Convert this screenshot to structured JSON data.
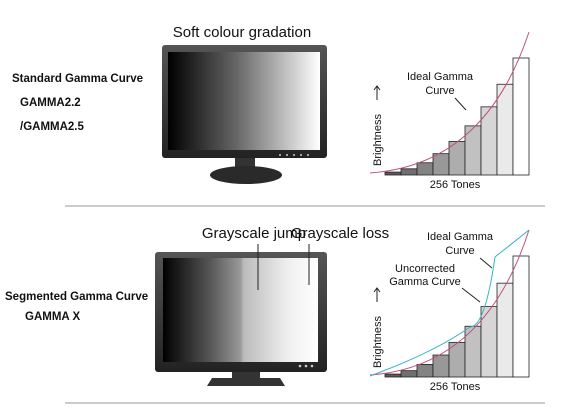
{
  "standard": {
    "heading": "Soft colour gradation",
    "title": "Standard Gamma Curve",
    "modes": [
      "GAMMA2.2",
      "/GAMMA2.5"
    ],
    "graph": {
      "ideal_label": [
        "Ideal Gamma",
        "Curve"
      ],
      "y_label": "Brightness",
      "x_label": "256 Tones"
    }
  },
  "segmented": {
    "callouts": [
      "Grayscale jump",
      "Grayscale loss"
    ],
    "title": "Segmented Gamma Curve",
    "modes": [
      "GAMMA X"
    ],
    "graph": {
      "ideal_label": [
        "Ideal Gamma",
        "Curve"
      ],
      "uncorrected_label": [
        "Uncorrected",
        "Gamma Curve"
      ],
      "y_label": "Brightness",
      "x_label": "256 Tones"
    }
  }
}
